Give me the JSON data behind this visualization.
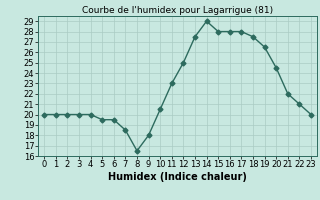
{
  "x": [
    0,
    1,
    2,
    3,
    4,
    5,
    6,
    7,
    8,
    9,
    10,
    11,
    12,
    13,
    14,
    15,
    16,
    17,
    18,
    19,
    20,
    21,
    22,
    23
  ],
  "y": [
    20,
    20,
    20,
    20,
    20,
    19.5,
    19.5,
    18.5,
    16.5,
    18,
    20.5,
    23,
    25,
    27.5,
    29,
    28,
    28,
    28,
    27.5,
    26.5,
    24.5,
    22,
    21,
    20
  ],
  "title": "Courbe de l'humidex pour Lagarrigue (81)",
  "xlabel": "Humidex (Indice chaleur)",
  "ylabel": "",
  "xlim": [
    -0.5,
    23.5
  ],
  "ylim": [
    16,
    29.5
  ],
  "yticks": [
    16,
    17,
    18,
    19,
    20,
    21,
    22,
    23,
    24,
    25,
    26,
    27,
    28,
    29
  ],
  "xticks": [
    0,
    1,
    2,
    3,
    4,
    5,
    6,
    7,
    8,
    9,
    10,
    11,
    12,
    13,
    14,
    15,
    16,
    17,
    18,
    19,
    20,
    21,
    22,
    23
  ],
  "line_color": "#2d6b5e",
  "bg_color": "#c8e8e0",
  "grid_color": "#aaccc4",
  "marker": "D",
  "marker_size": 2.5,
  "line_width": 1.0,
  "title_fontsize": 6.5,
  "label_fontsize": 7,
  "tick_fontsize": 6
}
